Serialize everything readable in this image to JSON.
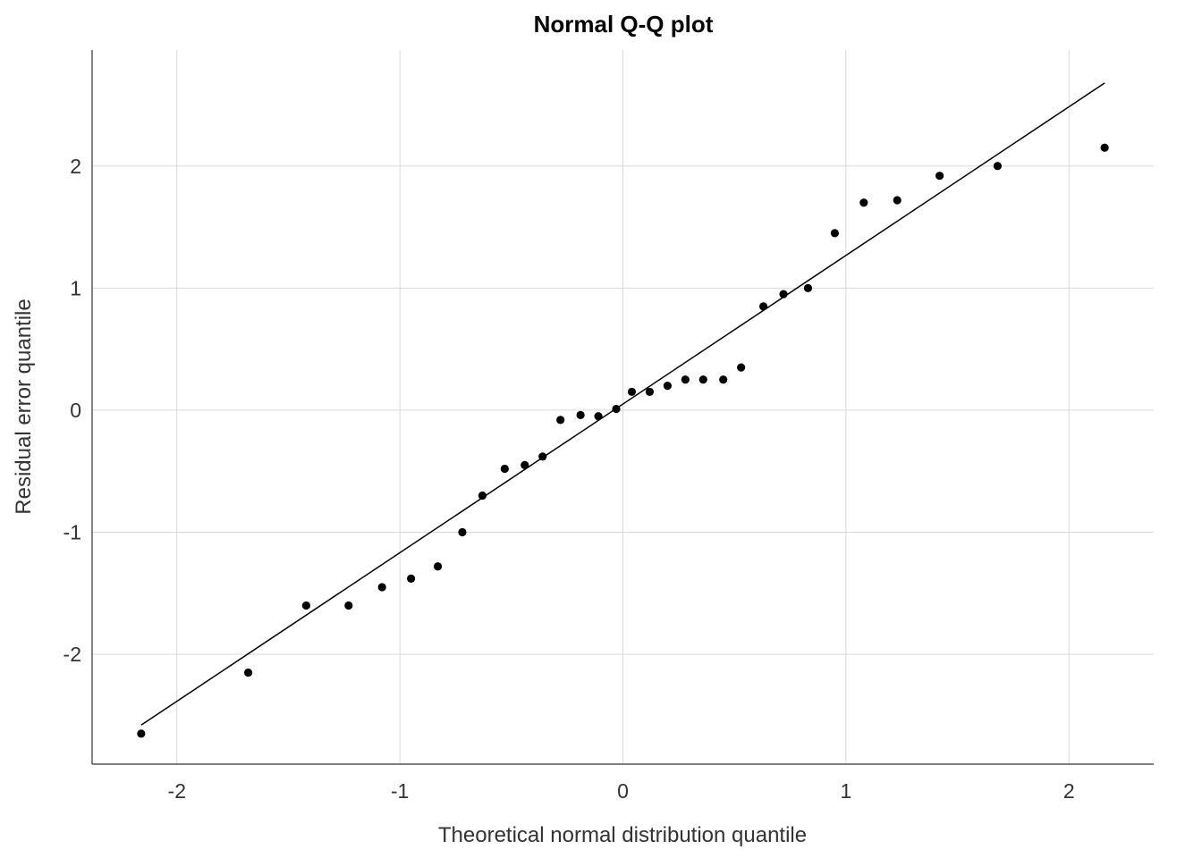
{
  "chart_data": {
    "type": "scatter",
    "title": "Normal Q-Q plot",
    "xlabel": "Theoretical normal distribution quantile",
    "ylabel": "Residual error quantile",
    "xlim": [
      -2.38,
      2.38
    ],
    "ylim": [
      -2.9,
      2.95
    ],
    "x_ticks": [
      -2,
      -1,
      0,
      1,
      2
    ],
    "y_ticks": [
      -2,
      -1,
      0,
      1,
      2
    ],
    "grid": true,
    "point_color": "#000000",
    "line_color": "#000000",
    "series": [
      {
        "type": "scatter",
        "x": [
          -2.16,
          -1.68,
          -1.42,
          -1.23,
          -1.08,
          -0.95,
          -0.83,
          -0.72,
          -0.63,
          -0.53,
          -0.44,
          -0.36,
          -0.28,
          -0.19,
          -0.11,
          -0.03,
          0.04,
          0.12,
          0.2,
          0.28,
          0.36,
          0.45,
          0.53,
          0.63,
          0.72,
          0.83,
          0.95,
          1.08,
          1.23,
          1.42,
          1.68,
          2.16
        ],
        "y": [
          -2.65,
          -2.15,
          -1.6,
          -1.6,
          -1.45,
          -1.38,
          -1.28,
          -1.0,
          -0.7,
          -0.48,
          -0.45,
          -0.38,
          -0.08,
          -0.04,
          -0.05,
          0.01,
          0.15,
          0.15,
          0.2,
          0.25,
          0.25,
          0.25,
          0.35,
          0.85,
          0.95,
          1.0,
          1.45,
          1.7,
          1.72,
          1.92,
          2.0,
          2.15
        ]
      },
      {
        "type": "line",
        "x": [
          -2.16,
          2.16
        ],
        "y": [
          -2.58,
          2.68
        ]
      }
    ]
  }
}
